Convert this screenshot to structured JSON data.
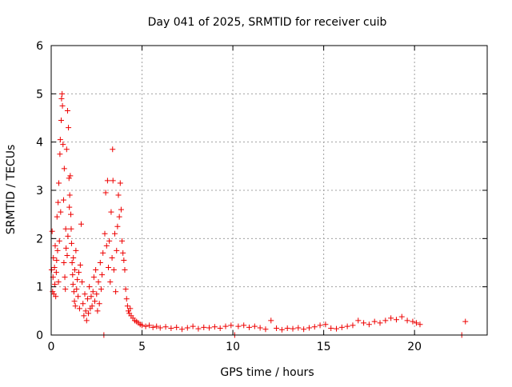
{
  "chart_data": {
    "type": "scatter",
    "title": "Day 041 of 2025, SRMTID for receiver cuib",
    "xlabel": "GPS time / hours",
    "ylabel": "SRMTID / TECUs",
    "xlim": [
      0,
      24
    ],
    "ylim": [
      0,
      6
    ],
    "xticks": [
      0,
      5,
      10,
      15,
      20
    ],
    "yticks": [
      0,
      1,
      2,
      3,
      4,
      5,
      6
    ],
    "grid": true,
    "marker": "+",
    "marker_color": "#ee0000",
    "series": [
      {
        "name": "SRMTID",
        "points": [
          [
            0.02,
            1.35
          ],
          [
            0.05,
            2.15
          ],
          [
            0.08,
            0.9
          ],
          [
            0.1,
            1.2
          ],
          [
            0.12,
            1.6
          ],
          [
            0.15,
            0.85
          ],
          [
            0.18,
            1.4
          ],
          [
            0.2,
            1.05
          ],
          [
            0.22,
            1.85
          ],
          [
            0.25,
            0.8
          ],
          [
            0.28,
            1.3
          ],
          [
            0.3,
            1.55
          ],
          [
            0.32,
            2.45
          ],
          [
            0.35,
            1.75
          ],
          [
            0.38,
            2.75
          ],
          [
            0.4,
            1.1
          ],
          [
            0.42,
            3.15
          ],
          [
            0.45,
            1.95
          ],
          [
            0.48,
            3.75
          ],
          [
            0.5,
            4.05
          ],
          [
            0.52,
            2.55
          ],
          [
            0.55,
            4.45
          ],
          [
            0.57,
            4.9
          ],
          [
            0.6,
            5.0
          ],
          [
            0.62,
            4.75
          ],
          [
            0.65,
            3.95
          ],
          [
            0.68,
            2.8
          ],
          [
            0.7,
            1.5
          ],
          [
            0.72,
            3.45
          ],
          [
            0.75,
            1.2
          ],
          [
            0.78,
            0.95
          ],
          [
            0.8,
            2.2
          ],
          [
            0.82,
            1.8
          ],
          [
            0.85,
            3.85
          ],
          [
            0.88,
            1.65
          ],
          [
            0.9,
            4.65
          ],
          [
            0.92,
            2.05
          ],
          [
            0.95,
            4.3
          ],
          [
            0.98,
            3.25
          ],
          [
            1.0,
            2.65
          ],
          [
            1.02,
            2.9
          ],
          [
            1.05,
            3.3
          ],
          [
            1.08,
            2.5
          ],
          [
            1.1,
            2.2
          ],
          [
            1.12,
            1.9
          ],
          [
            1.15,
            1.5
          ],
          [
            1.18,
            1.25
          ],
          [
            1.2,
            1.05
          ],
          [
            1.22,
            1.6
          ],
          [
            1.25,
            0.9
          ],
          [
            1.28,
            0.7
          ],
          [
            1.3,
            1.35
          ],
          [
            1.33,
            0.6
          ],
          [
            1.36,
            1.75
          ],
          [
            1.4,
            0.95
          ],
          [
            1.44,
            1.15
          ],
          [
            1.48,
            0.8
          ],
          [
            1.52,
            1.3
          ],
          [
            1.56,
            0.55
          ],
          [
            1.6,
            1.45
          ],
          [
            1.65,
            2.3
          ],
          [
            1.7,
            1.1
          ],
          [
            1.75,
            0.65
          ],
          [
            1.8,
            0.4
          ],
          [
            1.85,
            0.85
          ],
          [
            1.9,
            0.5
          ],
          [
            1.95,
            0.3
          ],
          [
            2.0,
            0.75
          ],
          [
            2.05,
            0.45
          ],
          [
            2.1,
            1.0
          ],
          [
            2.15,
            0.55
          ],
          [
            2.2,
            0.8
          ],
          [
            2.25,
            0.6
          ],
          [
            2.3,
            0.9
          ],
          [
            2.35,
            1.2
          ],
          [
            2.4,
            0.7
          ],
          [
            2.45,
            1.35
          ],
          [
            2.5,
            0.85
          ],
          [
            2.55,
            0.5
          ],
          [
            2.6,
            1.1
          ],
          [
            2.65,
            0.65
          ],
          [
            2.7,
            1.5
          ],
          [
            2.75,
            0.95
          ],
          [
            2.8,
            1.25
          ],
          [
            2.85,
            1.7
          ],
          [
            2.9,
            0.0
          ],
          [
            2.95,
            2.1
          ],
          [
            3.0,
            2.95
          ],
          [
            3.05,
            1.85
          ],
          [
            3.1,
            3.2
          ],
          [
            3.15,
            1.4
          ],
          [
            3.2,
            1.95
          ],
          [
            3.25,
            1.1
          ],
          [
            3.3,
            2.55
          ],
          [
            3.35,
            1.6
          ],
          [
            3.38,
            3.85
          ],
          [
            3.4,
            3.2
          ],
          [
            3.45,
            1.35
          ],
          [
            3.5,
            2.1
          ],
          [
            3.55,
            0.9
          ],
          [
            3.6,
            1.75
          ],
          [
            3.65,
            2.25
          ],
          [
            3.7,
            2.9
          ],
          [
            3.75,
            2.45
          ],
          [
            3.8,
            3.15
          ],
          [
            3.85,
            2.6
          ],
          [
            3.9,
            1.95
          ],
          [
            3.95,
            1.7
          ],
          [
            4.0,
            1.55
          ],
          [
            4.05,
            1.35
          ],
          [
            4.1,
            0.95
          ],
          [
            4.15,
            0.75
          ],
          [
            4.2,
            0.6
          ],
          [
            4.25,
            0.5
          ],
          [
            4.3,
            0.45
          ],
          [
            4.35,
            0.55
          ],
          [
            4.4,
            0.4
          ],
          [
            4.5,
            0.35
          ],
          [
            4.6,
            0.3
          ],
          [
            4.7,
            0.28
          ],
          [
            4.8,
            0.25
          ],
          [
            4.9,
            0.22
          ],
          [
            5.0,
            0.2
          ],
          [
            5.2,
            0.18
          ],
          [
            5.4,
            0.2
          ],
          [
            5.6,
            0.16
          ],
          [
            5.8,
            0.18
          ],
          [
            6.0,
            0.15
          ],
          [
            6.3,
            0.17
          ],
          [
            6.6,
            0.14
          ],
          [
            6.9,
            0.16
          ],
          [
            7.2,
            0.12
          ],
          [
            7.5,
            0.15
          ],
          [
            7.8,
            0.18
          ],
          [
            8.1,
            0.13
          ],
          [
            8.4,
            0.16
          ],
          [
            8.7,
            0.15
          ],
          [
            9.0,
            0.17
          ],
          [
            9.3,
            0.14
          ],
          [
            9.6,
            0.18
          ],
          [
            9.9,
            0.2
          ],
          [
            10.1,
            0.0
          ],
          [
            10.3,
            0.18
          ],
          [
            10.6,
            0.2
          ],
          [
            10.9,
            0.16
          ],
          [
            11.2,
            0.18
          ],
          [
            11.5,
            0.15
          ],
          [
            11.8,
            0.12
          ],
          [
            12.1,
            0.3
          ],
          [
            12.4,
            0.14
          ],
          [
            12.7,
            0.11
          ],
          [
            13.0,
            0.14
          ],
          [
            13.3,
            0.13
          ],
          [
            13.6,
            0.15
          ],
          [
            13.9,
            0.12
          ],
          [
            14.2,
            0.15
          ],
          [
            14.5,
            0.17
          ],
          [
            14.8,
            0.2
          ],
          [
            15.1,
            0.22
          ],
          [
            15.4,
            0.14
          ],
          [
            15.7,
            0.13
          ],
          [
            16.0,
            0.16
          ],
          [
            16.3,
            0.18
          ],
          [
            16.6,
            0.2
          ],
          [
            16.9,
            0.3
          ],
          [
            17.2,
            0.25
          ],
          [
            17.5,
            0.22
          ],
          [
            17.8,
            0.28
          ],
          [
            18.1,
            0.25
          ],
          [
            18.4,
            0.3
          ],
          [
            18.7,
            0.35
          ],
          [
            19.0,
            0.32
          ],
          [
            19.3,
            0.38
          ],
          [
            19.6,
            0.3
          ],
          [
            19.9,
            0.28
          ],
          [
            20.1,
            0.25
          ],
          [
            20.3,
            0.22
          ],
          [
            22.6,
            0.0
          ],
          [
            22.8,
            0.28
          ]
        ]
      }
    ]
  }
}
